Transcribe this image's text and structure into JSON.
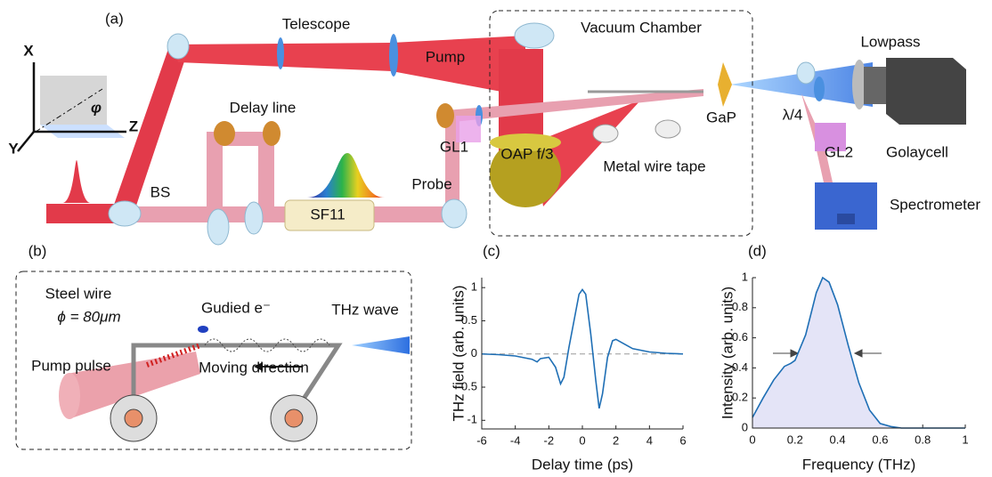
{
  "panel_a": {
    "label": "(a)",
    "telescope": "Telescope",
    "vacuum_chamber": "Vacuum Chamber",
    "lowpass": "Lowpass",
    "pump": "Pump",
    "axis_x": "X",
    "axis_y": "Y",
    "axis_z": "Z",
    "angle": "φ",
    "delay_line": "Delay line",
    "gap": "GaP",
    "waveplate": "λ/4",
    "gl1": "GL1",
    "gl2": "GL2",
    "oap": "OAP f/3",
    "metal_wire_tape": "Metal wire tape",
    "golaycell": "Golaycell",
    "bs": "BS",
    "probe": "Probe",
    "sf11": "SF11",
    "spectrometer": "Spectrometer"
  },
  "panel_b": {
    "label": "(b)",
    "steel_wire": "Steel wire",
    "diameter": "ϕ = 80μm",
    "guided_electron": "Gudied e⁻",
    "thz_wave": "THz wave",
    "pump_pulse": "Pump pulse",
    "moving_direction": "Moving direction"
  },
  "chart_data": [
    {
      "type": "line",
      "label": "(c)",
      "xlabel": "Delay time (ps)",
      "ylabel": "THz field (arb. units)",
      "x": [
        -6,
        -5,
        -4,
        -3,
        -2.7,
        -2.5,
        -2,
        -1.6,
        -1.3,
        -1.1,
        -0.8,
        -0.5,
        -0.2,
        0,
        0.2,
        0.5,
        0.8,
        1,
        1.2,
        1.5,
        1.8,
        2,
        2.5,
        3,
        4,
        5,
        6
      ],
      "values": [
        0,
        -0.01,
        -0.03,
        -0.08,
        -0.12,
        -0.07,
        -0.05,
        -0.2,
        -0.45,
        -0.35,
        0.1,
        0.5,
        0.9,
        0.97,
        0.9,
        0.3,
        -0.4,
        -0.82,
        -0.6,
        -0.05,
        0.2,
        0.22,
        0.15,
        0.08,
        0.03,
        0.01,
        0
      ],
      "color": "#1f6fb5",
      "xlim": [
        -6,
        6
      ],
      "ylim": [
        -1.13,
        1.15
      ],
      "xticks": [
        -6,
        -4,
        -2,
        0,
        2,
        4,
        6
      ],
      "yticks": [
        -1,
        -0.5,
        0,
        0.5,
        1
      ],
      "ref_line": 0
    },
    {
      "type": "area",
      "label": "(d)",
      "xlabel": "Frequency (THz)",
      "ylabel": "Intensity (arb. units)",
      "x": [
        0,
        0.05,
        0.1,
        0.15,
        0.18,
        0.2,
        0.25,
        0.3,
        0.33,
        0.36,
        0.4,
        0.45,
        0.5,
        0.55,
        0.6,
        0.65,
        0.7,
        1
      ],
      "values": [
        0.07,
        0.2,
        0.32,
        0.41,
        0.43,
        0.45,
        0.62,
        0.9,
        1,
        0.97,
        0.82,
        0.55,
        0.3,
        0.12,
        0.03,
        0.01,
        0,
        0
      ],
      "color": "#1f6fb5",
      "fill": "#e4e4f7",
      "xlim": [
        0,
        1
      ],
      "ylim": [
        0,
        1
      ],
      "xticks": [
        0,
        0.2,
        0.4,
        0.6,
        0.8,
        1
      ],
      "yticks": [
        0,
        0.2,
        0.4,
        0.6,
        0.8,
        1
      ]
    }
  ]
}
